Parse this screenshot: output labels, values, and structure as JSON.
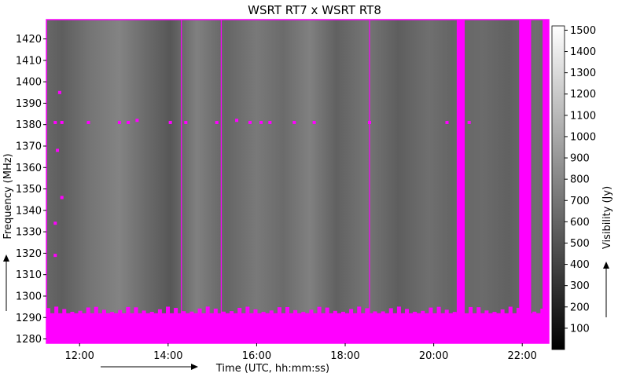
{
  "chart_data": {
    "type": "heatmap",
    "title": "WSRT RT7 x WSRT RT8",
    "xlabel": "Time (UTC, hh:mm:ss)",
    "ylabel": "Frequency (MHz)",
    "colorbar_label": "Visibility (Jy)",
    "x_ticks": [
      "12:00",
      "14:00",
      "16:00",
      "18:00",
      "20:00",
      "22:00"
    ],
    "y_ticks": [
      1280,
      1290,
      1300,
      1310,
      1320,
      1330,
      1340,
      1350,
      1360,
      1370,
      1380,
      1390,
      1400,
      1410,
      1420
    ],
    "colorbar_ticks": [
      100,
      200,
      300,
      400,
      500,
      600,
      700,
      800,
      900,
      1000,
      1100,
      1200,
      1300,
      1400,
      1500
    ],
    "xlim_hours": [
      11.25,
      22.6
    ],
    "ylim": [
      1278,
      1429
    ],
    "clim": [
      0,
      1520
    ],
    "colormap": "gray",
    "flag_color": "#ff00ff",
    "background_value": 620,
    "time_bands": [
      {
        "center_hours": 11.6,
        "value": 560
      },
      {
        "center_hours": 12.25,
        "value": 700
      },
      {
        "center_hours": 12.9,
        "value": 780
      },
      {
        "center_hours": 13.5,
        "value": 640
      },
      {
        "center_hours": 14.05,
        "value": 520
      },
      {
        "center_hours": 14.65,
        "value": 760
      },
      {
        "center_hours": 15.3,
        "value": 600
      },
      {
        "center_hours": 16.0,
        "value": 720
      },
      {
        "center_hours": 16.6,
        "value": 640
      },
      {
        "center_hours": 17.2,
        "value": 760
      },
      {
        "center_hours": 17.8,
        "value": 580
      },
      {
        "center_hours": 18.5,
        "value": 700
      },
      {
        "center_hours": 19.2,
        "value": 560
      },
      {
        "center_hours": 19.9,
        "value": 660
      },
      {
        "center_hours": 20.4,
        "value": 600
      },
      {
        "center_hours": 21.1,
        "value": 640
      },
      {
        "center_hours": 21.7,
        "value": 580
      },
      {
        "center_hours": 22.3,
        "value": 660
      }
    ],
    "flagged_time_bands_hours": [
      [
        20.52,
        20.7
      ],
      [
        21.93,
        22.2
      ],
      [
        22.46,
        22.6
      ]
    ],
    "flagged_time_lines_hours": [
      14.3,
      15.2,
      18.55
    ],
    "flagged_freq_band_mhz": [
      1278,
      1292
    ],
    "rfi_spots": [
      {
        "time_hours": 11.45,
        "freq_mhz": 1381
      },
      {
        "time_hours": 11.6,
        "freq_mhz": 1381
      },
      {
        "time_hours": 12.2,
        "freq_mhz": 1381
      },
      {
        "time_hours": 12.9,
        "freq_mhz": 1381
      },
      {
        "time_hours": 13.1,
        "freq_mhz": 1381
      },
      {
        "time_hours": 13.3,
        "freq_mhz": 1382
      },
      {
        "time_hours": 14.05,
        "freq_mhz": 1381
      },
      {
        "time_hours": 14.4,
        "freq_mhz": 1381
      },
      {
        "time_hours": 15.1,
        "freq_mhz": 1381
      },
      {
        "time_hours": 15.55,
        "freq_mhz": 1382
      },
      {
        "time_hours": 15.85,
        "freq_mhz": 1381
      },
      {
        "time_hours": 16.1,
        "freq_mhz": 1381
      },
      {
        "time_hours": 16.3,
        "freq_mhz": 1381
      },
      {
        "time_hours": 16.85,
        "freq_mhz": 1381
      },
      {
        "time_hours": 17.3,
        "freq_mhz": 1381
      },
      {
        "time_hours": 18.55,
        "freq_mhz": 1381
      },
      {
        "time_hours": 20.3,
        "freq_mhz": 1381
      },
      {
        "time_hours": 20.8,
        "freq_mhz": 1381
      },
      {
        "time_hours": 11.55,
        "freq_mhz": 1395
      },
      {
        "time_hours": 11.45,
        "freq_mhz": 1334
      },
      {
        "time_hours": 11.45,
        "freq_mhz": 1319
      },
      {
        "time_hours": 11.6,
        "freq_mhz": 1346
      },
      {
        "time_hours": 11.5,
        "freq_mhz": 1368
      }
    ]
  }
}
